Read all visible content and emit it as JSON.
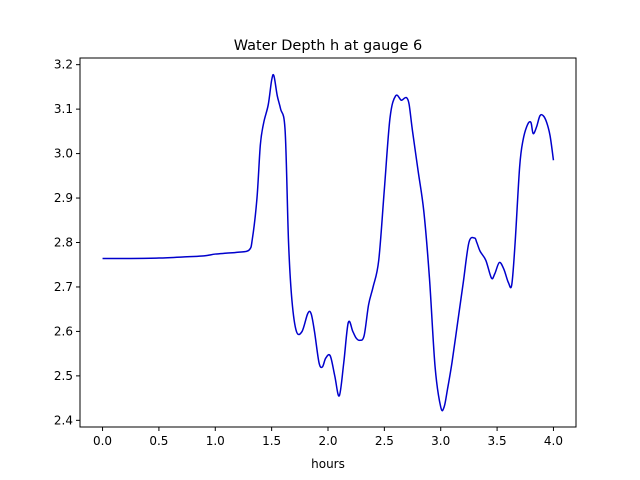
{
  "chart_data": {
    "type": "line",
    "title": "Water Depth h at gauge 6",
    "xlabel": "hours",
    "ylabel": "",
    "xlim": [
      -0.2,
      4.2
    ],
    "ylim": [
      2.385,
      3.215
    ],
    "xticks": [
      0.0,
      0.5,
      1.0,
      1.5,
      2.0,
      2.5,
      3.0,
      3.5,
      4.0
    ],
    "xtick_labels": [
      "0.0",
      "0.5",
      "1.0",
      "1.5",
      "2.0",
      "2.5",
      "3.0",
      "3.5",
      "4.0"
    ],
    "yticks": [
      2.4,
      2.5,
      2.6,
      2.7,
      2.8,
      2.9,
      3.0,
      3.1,
      3.2
    ],
    "ytick_labels": [
      "2.4",
      "2.5",
      "2.6",
      "2.7",
      "2.8",
      "2.9",
      "3.0",
      "3.1",
      "3.2"
    ],
    "grid": false,
    "line_color": "#0000cc",
    "series": [
      {
        "x": [
          0.0,
          0.25,
          0.5,
          0.75,
          0.9,
          1.0,
          1.1,
          1.2,
          1.3,
          1.33,
          1.37,
          1.4,
          1.43,
          1.47,
          1.5,
          1.52,
          1.55,
          1.58,
          1.62,
          1.65,
          1.68,
          1.72,
          1.77,
          1.82,
          1.85,
          1.88,
          1.92,
          1.95,
          1.98,
          2.02,
          2.06,
          2.1,
          2.14,
          2.18,
          2.22,
          2.25,
          2.28,
          2.32,
          2.36,
          2.4,
          2.45,
          2.5,
          2.55,
          2.6,
          2.65,
          2.68,
          2.7,
          2.72,
          2.75,
          2.8,
          2.85,
          2.9,
          2.95,
          3.0,
          3.03,
          3.06,
          3.1,
          3.15,
          3.2,
          3.25,
          3.3,
          3.32,
          3.35,
          3.4,
          3.45,
          3.48,
          3.52,
          3.56,
          3.6,
          3.63,
          3.66,
          3.7,
          3.73,
          3.77,
          3.8,
          3.82,
          3.85,
          3.88,
          3.91,
          3.94,
          3.97,
          4.0
        ],
        "y": [
          2.764,
          2.764,
          2.765,
          2.768,
          2.77,
          2.774,
          2.776,
          2.778,
          2.783,
          2.81,
          2.9,
          3.02,
          3.07,
          3.11,
          3.165,
          3.175,
          3.13,
          3.1,
          3.05,
          2.8,
          2.67,
          2.6,
          2.6,
          2.64,
          2.64,
          2.6,
          2.53,
          2.52,
          2.54,
          2.545,
          2.5,
          2.455,
          2.53,
          2.62,
          2.6,
          2.585,
          2.58,
          2.59,
          2.66,
          2.7,
          2.76,
          2.92,
          3.08,
          3.13,
          3.12,
          3.125,
          3.125,
          3.11,
          3.05,
          2.96,
          2.87,
          2.72,
          2.52,
          2.43,
          2.43,
          2.47,
          2.53,
          2.62,
          2.71,
          2.8,
          2.81,
          2.8,
          2.78,
          2.76,
          2.72,
          2.73,
          2.755,
          2.74,
          2.71,
          2.705,
          2.8,
          2.97,
          3.03,
          3.065,
          3.07,
          3.045,
          3.06,
          3.085,
          3.085,
          3.07,
          3.04,
          2.985
        ]
      }
    ]
  }
}
